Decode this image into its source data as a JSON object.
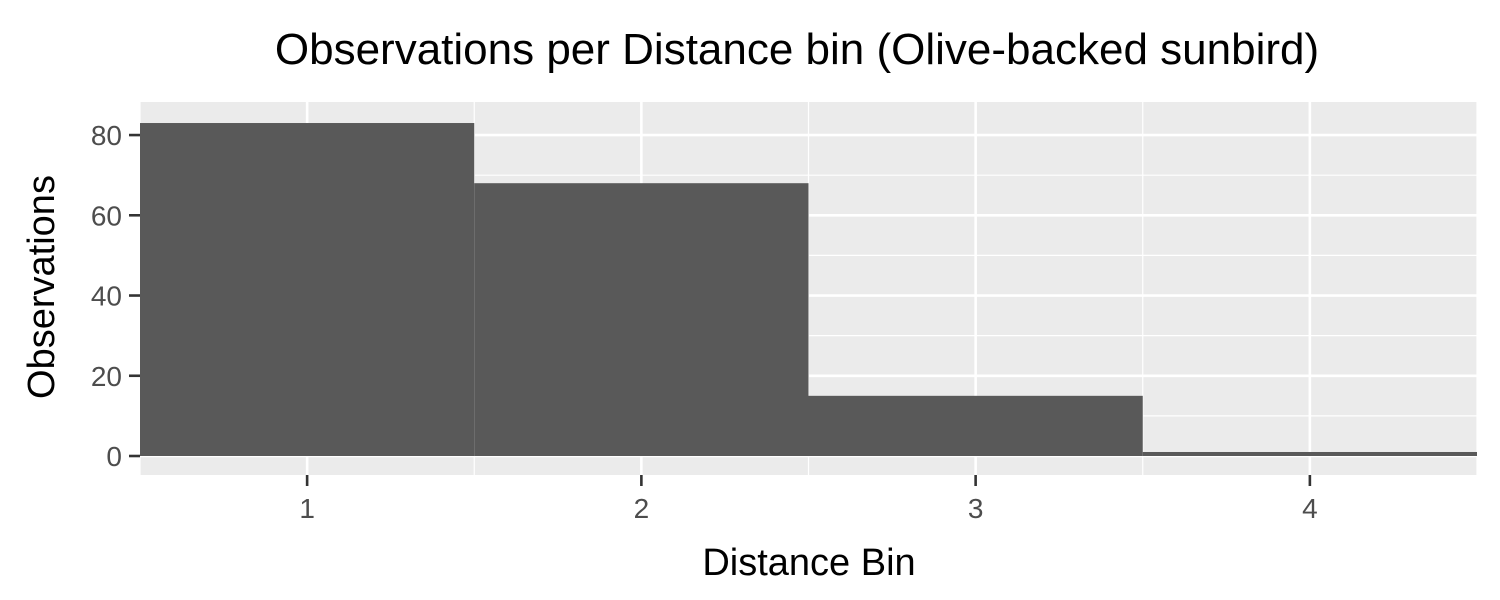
{
  "chart_data": {
    "type": "bar",
    "title": "Observations per Distance bin (Olive-backed sunbird)",
    "xlabel": "Distance Bin",
    "ylabel": "Observations",
    "categories": [
      "1",
      "2",
      "3",
      "4"
    ],
    "values": [
      83,
      68,
      15,
      1
    ],
    "xlim": [
      0.5,
      4.5
    ],
    "ylim": [
      0,
      85
    ],
    "xticks": [
      1,
      2,
      3,
      4
    ],
    "yticks": [
      0,
      20,
      40,
      60,
      80
    ],
    "grid": true,
    "legend": "none"
  },
  "colors": {
    "bar": "#595959",
    "panel": "#ebebeb",
    "grid": "#ffffff",
    "tick_text": "#4d4d4d",
    "tick_mark": "#333333"
  }
}
